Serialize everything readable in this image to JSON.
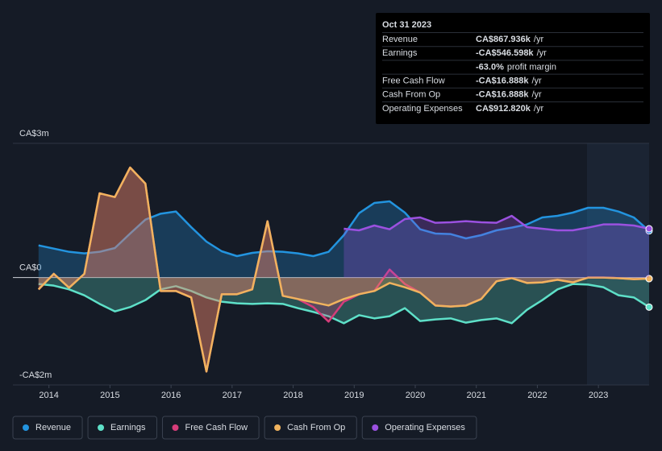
{
  "chart_data": {
    "type": "area",
    "x": [
      2013.83,
      2014.08,
      2014.33,
      2014.58,
      2014.83,
      2015.08,
      2015.33,
      2015.58,
      2015.83,
      2016.08,
      2016.33,
      2016.58,
      2016.83,
      2017.08,
      2017.33,
      2017.58,
      2017.83,
      2018.08,
      2018.33,
      2018.58,
      2018.83,
      2019.08,
      2019.33,
      2019.58,
      2019.83,
      2020.08,
      2020.33,
      2020.58,
      2020.83,
      2021.08,
      2021.33,
      2021.58,
      2021.83,
      2022.08,
      2022.33,
      2022.58,
      2022.83,
      2023.08,
      2023.33,
      2023.58,
      2023.83
    ],
    "xlim": [
      2013.41,
      2023.83
    ],
    "xticks": [
      2014,
      2015,
      2016,
      2017,
      2018,
      2019,
      2020,
      2021,
      2022,
      2023
    ],
    "ylim": [
      -2,
      2.5
    ],
    "yticks": [
      {
        "value": 2.5,
        "label": "CA$3m"
      },
      {
        "value": 0,
        "label": "CA$0"
      },
      {
        "value": -2,
        "label": "-CA$2m"
      }
    ],
    "series": [
      {
        "name": "Revenue",
        "color": "#2394df",
        "values": [
          0.6,
          0.54,
          0.48,
          0.45,
          0.48,
          0.55,
          0.82,
          1.08,
          1.19,
          1.23,
          0.94,
          0.67,
          0.49,
          0.4,
          0.46,
          0.49,
          0.48,
          0.45,
          0.4,
          0.48,
          0.79,
          1.2,
          1.39,
          1.42,
          1.21,
          0.9,
          0.82,
          0.81,
          0.73,
          0.79,
          0.88,
          0.93,
          0.99,
          1.12,
          1.15,
          1.21,
          1.3,
          1.3,
          1.23,
          1.12,
          0.87
        ]
      },
      {
        "name": "Earnings",
        "color": "#5ee0c8",
        "values": [
          -0.12,
          -0.15,
          -0.22,
          -0.33,
          -0.49,
          -0.63,
          -0.55,
          -0.42,
          -0.22,
          -0.16,
          -0.25,
          -0.37,
          -0.45,
          -0.48,
          -0.49,
          -0.48,
          -0.49,
          -0.57,
          -0.64,
          -0.72,
          -0.85,
          -0.7,
          -0.76,
          -0.72,
          -0.57,
          -0.81,
          -0.78,
          -0.76,
          -0.84,
          -0.79,
          -0.76,
          -0.85,
          -0.6,
          -0.42,
          -0.22,
          -0.12,
          -0.13,
          -0.18,
          -0.33,
          -0.37,
          -0.55
        ]
      },
      {
        "name": "Free Cash Flow",
        "color": "#d63d7a",
        "values": [
          -0.22,
          0.07,
          -0.19,
          0.07,
          1.57,
          1.5,
          2.05,
          1.75,
          -0.25,
          -0.25,
          -0.37,
          -1.75,
          -0.31,
          -0.31,
          -0.22,
          1.05,
          -0.34,
          -0.4,
          -0.55,
          -0.82,
          -0.45,
          -0.31,
          -0.25,
          0.15,
          -0.12,
          -0.28,
          -0.52,
          -0.54,
          -0.52,
          -0.4,
          -0.07,
          -0.01,
          -0.1,
          -0.09,
          -0.04,
          -0.09,
          0.0,
          0.0,
          -0.01,
          -0.03,
          -0.02
        ]
      },
      {
        "name": "Cash From Op",
        "color": "#f0b35e",
        "values": [
          -0.22,
          0.07,
          -0.19,
          0.07,
          1.57,
          1.5,
          2.05,
          1.75,
          -0.25,
          -0.25,
          -0.37,
          -1.75,
          -0.31,
          -0.31,
          -0.22,
          1.05,
          -0.34,
          -0.4,
          -0.46,
          -0.52,
          -0.4,
          -0.31,
          -0.25,
          -0.1,
          -0.18,
          -0.28,
          -0.52,
          -0.54,
          -0.52,
          -0.4,
          -0.07,
          -0.01,
          -0.1,
          -0.09,
          -0.04,
          -0.09,
          0.0,
          0.0,
          -0.01,
          -0.03,
          -0.02
        ]
      },
      {
        "name": "Operating Expenses",
        "color": "#9b51e0",
        "values": [
          null,
          null,
          null,
          null,
          null,
          null,
          null,
          null,
          null,
          null,
          null,
          null,
          null,
          null,
          null,
          null,
          null,
          null,
          null,
          null,
          0.91,
          0.88,
          0.97,
          0.9,
          1.09,
          1.12,
          1.02,
          1.03,
          1.05,
          1.03,
          1.02,
          1.15,
          0.94,
          0.91,
          0.88,
          0.88,
          0.93,
          0.99,
          0.99,
          0.97,
          0.91
        ]
      }
    ],
    "tooltip": {
      "date": "Oct 31 2023",
      "rows": [
        {
          "label": "Revenue",
          "value": "CA$867.936k",
          "unit": "/yr",
          "color": "#2394df"
        },
        {
          "label": "Earnings",
          "value": "-CA$546.598k",
          "unit": "/yr",
          "color": "#e64a4a"
        },
        {
          "value": "-63.0%",
          "unit": "profit margin",
          "color": "#e64a4a"
        },
        {
          "label": "Free Cash Flow",
          "value": "-CA$16.888k",
          "unit": "/yr",
          "color": "#e64a4a"
        },
        {
          "label": "Cash From Op",
          "value": "-CA$16.888k",
          "unit": "/yr",
          "color": "#e64a4a"
        },
        {
          "label": "Operating Expenses",
          "value": "CA$912.820k",
          "unit": "/yr",
          "color": "#a855f7"
        }
      ]
    }
  }
}
